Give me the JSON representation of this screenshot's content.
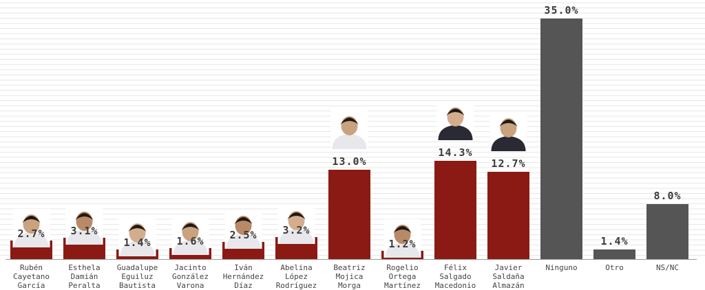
{
  "chart_data": {
    "type": "bar",
    "title": "",
    "xlabel": "",
    "ylabel": "",
    "ylim": [
      0,
      36.5
    ],
    "grid": true,
    "unit": "%",
    "categories": [
      [
        "Rubén",
        "Cayetano",
        "García"
      ],
      [
        "Esthela",
        "Damián",
        "Peralta"
      ],
      [
        "Guadalupe",
        "Eguiluz",
        "Bautista"
      ],
      [
        "Jacinto",
        "González",
        "Varona"
      ],
      [
        "Iván",
        "Hernández",
        "Díaz"
      ],
      [
        "Abelina",
        "López",
        "Rodríguez"
      ],
      [
        "Beatriz",
        "Mojica",
        "Morga"
      ],
      [
        "Rogelio",
        "Ortega",
        "Martínez"
      ],
      [
        "Félix",
        "Salgado",
        "Macedonio"
      ],
      [
        "Javier",
        "Saldaña",
        "Almazán"
      ],
      [
        "Ninguno"
      ],
      [
        "Otro"
      ],
      [
        "NS/NC"
      ]
    ],
    "values": [
      2.7,
      3.1,
      1.4,
      1.6,
      2.5,
      3.2,
      13.0,
      1.2,
      14.3,
      12.7,
      35.0,
      1.4,
      8.0
    ],
    "labels": [
      "2.7%",
      "3.1%",
      "1.4%",
      "1.6%",
      "2.5%",
      "3.2%",
      "13.0%",
      "1.2%",
      "14.3%",
      "12.7%",
      "35.0%",
      "1.4%",
      "8.0%"
    ],
    "has_photo": [
      true,
      true,
      true,
      true,
      true,
      true,
      true,
      true,
      true,
      true,
      false,
      false,
      false
    ]
  },
  "colors": {
    "candidate_bar": "#8b1a14",
    "other_bar": "#555555",
    "grid_line": "#e6e6e6",
    "axis_line": "#999999",
    "value_text": "#3a3a3a",
    "label_text": "#444444"
  },
  "icons": {
    "photo": "person-portrait-icon"
  }
}
